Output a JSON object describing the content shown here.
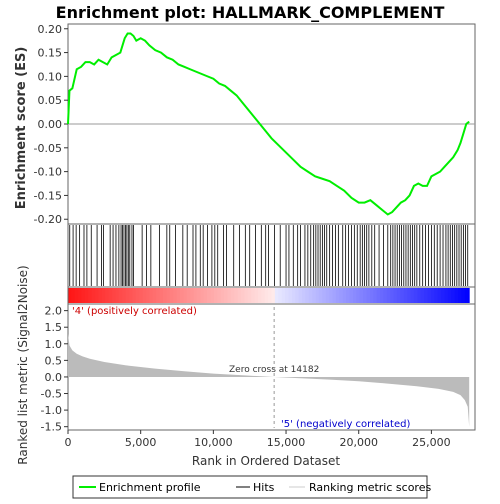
{
  "chart_data": {
    "type": "line",
    "title": "Enrichment plot: HALLMARK_COMPLEMENT",
    "top_panel": {
      "ylabel": "Enrichment score (ES)",
      "ylim": [
        -0.21,
        0.21
      ],
      "yticks": [
        "0.20",
        "0.15",
        "0.10",
        "0.05",
        "0.00",
        "-0.05",
        "-0.10",
        "-0.15",
        "-0.20"
      ],
      "ytick_values": [
        0.2,
        0.15,
        0.1,
        0.05,
        0.0,
        -0.05,
        -0.1,
        -0.15,
        -0.2
      ],
      "series": [
        {
          "name": "Enrichment profile",
          "color": "#00ee00",
          "x": [
            0,
            100,
            300,
            600,
            900,
            1200,
            1500,
            1800,
            2100,
            2400,
            2700,
            3000,
            3300,
            3600,
            3900,
            4100,
            4300,
            4500,
            4700,
            5000,
            5300,
            5600,
            6000,
            6400,
            6800,
            7200,
            7600,
            8000,
            8400,
            8800,
            9200,
            9600,
            10000,
            10400,
            10800,
            11200,
            11600,
            12000,
            12400,
            12800,
            13200,
            13600,
            14000,
            14500,
            15000,
            15500,
            16000,
            16500,
            17000,
            17500,
            18000,
            18500,
            19000,
            19500,
            20000,
            20400,
            20800,
            21200,
            21600,
            22000,
            22300,
            22600,
            22900,
            23200,
            23500,
            23800,
            24100,
            24400,
            24700,
            25000,
            25300,
            25600,
            25900,
            26200,
            26500,
            26800,
            27000,
            27200,
            27400,
            27600
          ],
          "y": [
            0.0,
            0.07,
            0.075,
            0.115,
            0.12,
            0.13,
            0.13,
            0.125,
            0.135,
            0.13,
            0.125,
            0.14,
            0.145,
            0.15,
            0.18,
            0.19,
            0.19,
            0.185,
            0.175,
            0.18,
            0.175,
            0.165,
            0.155,
            0.15,
            0.14,
            0.135,
            0.125,
            0.12,
            0.115,
            0.11,
            0.105,
            0.1,
            0.095,
            0.085,
            0.08,
            0.07,
            0.06,
            0.045,
            0.03,
            0.015,
            0.0,
            -0.015,
            -0.03,
            -0.045,
            -0.06,
            -0.075,
            -0.09,
            -0.1,
            -0.11,
            -0.115,
            -0.12,
            -0.13,
            -0.14,
            -0.155,
            -0.165,
            -0.165,
            -0.16,
            -0.17,
            -0.18,
            -0.19,
            -0.185,
            -0.175,
            -0.165,
            -0.16,
            -0.15,
            -0.13,
            -0.125,
            -0.13,
            -0.13,
            -0.11,
            -0.105,
            -0.1,
            -0.09,
            -0.08,
            -0.07,
            -0.055,
            -0.04,
            -0.02,
            0.0,
            0.005
          ]
        }
      ]
    },
    "bottom_panel": {
      "ylabel": "Ranked list metric (Signal2Noise)",
      "xlabel": "Rank in Ordered Dataset",
      "xlim": [
        0,
        28000
      ],
      "ylim": [
        -1.6,
        2.2
      ],
      "xticks": [
        "0",
        "5,000",
        "10,000",
        "15,000",
        "20,000",
        "25,000"
      ],
      "xtick_values": [
        0,
        5000,
        10000,
        15000,
        20000,
        25000
      ],
      "yticks": [
        "2.0",
        "1.5",
        "1.0",
        "0.5",
        "0.0",
        "-0.5",
        "-1.0",
        "-1.5"
      ],
      "ytick_values": [
        2.0,
        1.5,
        1.0,
        0.5,
        0.0,
        -0.5,
        -1.0,
        -1.5
      ],
      "metric_x": [
        0,
        100,
        300,
        600,
        1000,
        1500,
        2500,
        4000,
        6000,
        8000,
        10000,
        12000,
        14182,
        16000,
        18000,
        20000,
        22000,
        24000,
        25500,
        26500,
        27000,
        27300,
        27500,
        27600
      ],
      "metric_y": [
        1.3,
        0.95,
        0.8,
        0.7,
        0.62,
        0.55,
        0.45,
        0.35,
        0.25,
        0.17,
        0.1,
        0.05,
        0.0,
        -0.04,
        -0.08,
        -0.13,
        -0.2,
        -0.28,
        -0.36,
        -0.45,
        -0.55,
        -0.7,
        -0.9,
        -1.5
      ],
      "zero_cross_label": "Zero cross at 14182",
      "zero_cross_x": 14182,
      "pos_label": "'4' (positively correlated)",
      "neg_label": "'5' (negatively correlated)",
      "fill_color": "#bbbbbb"
    },
    "hits": {
      "color": "#000000",
      "positions": [
        120,
        350,
        560,
        800,
        1100,
        1300,
        1600,
        2000,
        2300,
        2450,
        2900,
        3100,
        3300,
        3500,
        3650,
        3750,
        3850,
        3950,
        4050,
        4150,
        4250,
        4400,
        4500,
        5100,
        5400,
        5700,
        6300,
        6800,
        7000,
        7400,
        7900,
        8200,
        8600,
        8800,
        9100,
        9300,
        9600,
        9900,
        10100,
        10300,
        10700,
        10900,
        11400,
        11800,
        12200,
        12500,
        12900,
        13300,
        13600,
        13800,
        14200,
        14600,
        15000,
        15200,
        15500,
        15800,
        16000,
        16300,
        16500,
        16700,
        16900,
        17050,
        17200,
        17350,
        17500,
        17650,
        17800,
        18000,
        18200,
        18400,
        18600,
        18900,
        19100,
        19300,
        19500,
        19700,
        19900,
        20100,
        20250,
        20400,
        20550,
        20700,
        20900,
        21100,
        21400,
        21700,
        22000,
        22200,
        22350,
        22500,
        22650,
        22800,
        22950,
        23100,
        23250,
        23400,
        23550,
        23700,
        23850,
        24000,
        24200,
        24400,
        24600,
        24800,
        25000,
        25200,
        25400,
        25600,
        25800,
        26000,
        26150,
        26300,
        26450,
        26600,
        26750,
        26900,
        27050,
        27200,
        27350,
        27500
      ]
    },
    "legend": {
      "entries": [
        "Enrichment profile",
        "Hits",
        "Ranking metric scores"
      ],
      "colors": [
        "#00ee00",
        "#000000",
        "#cccccc"
      ]
    }
  }
}
